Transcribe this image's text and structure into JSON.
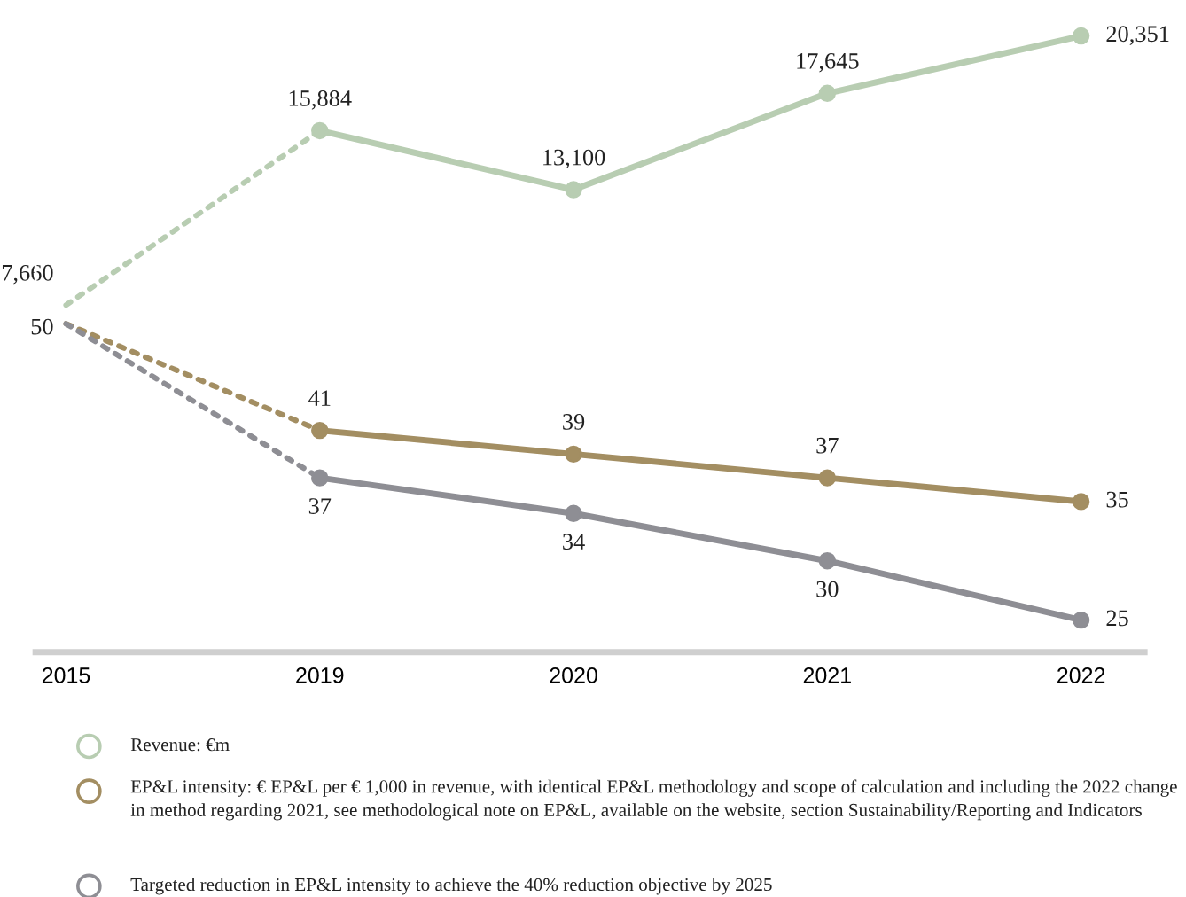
{
  "chart_data": {
    "type": "line",
    "categories": [
      "2015",
      "2019",
      "2020",
      "2021",
      "2022"
    ],
    "series": [
      {
        "color": "#b8cdb2",
        "axis": "y2",
        "line_style": "dotted",
        "marker": "none",
        "values": [
          7660,
          15884,
          null,
          null,
          null
        ],
        "value_labels": [
          "7,660",
          null,
          null,
          null,
          null
        ]
      },
      {
        "name": "Revenue: €m",
        "color": "#b8cdb2",
        "axis": "y2",
        "values": [
          null,
          15884,
          13100,
          17645,
          20351
        ],
        "value_labels": [
          null,
          "15,884",
          "13,100",
          "17,645",
          "20,351"
        ]
      },
      {
        "color": "#a38e62",
        "line_style": "dotted",
        "marker": "none",
        "values": [
          50,
          41,
          null,
          null,
          null
        ],
        "value_labels": [
          "50",
          null,
          null,
          null,
          null
        ]
      },
      {
        "name": "EP&L intensity: € EP&L per € 1,000 in revenue, with identical EP&L methodology and scope of calculation and including the 2022 change in method regarding 2021, see methodological note on EP&L, available on the website, section Sustainability/Reporting and Indicators",
        "color": "#a38e62",
        "values": [
          null,
          41,
          39,
          37,
          35
        ],
        "value_labels": [
          null,
          "41",
          "39",
          "37",
          "35"
        ]
      },
      {
        "color": "#8e8e94",
        "line_style": "dotted",
        "marker": "none",
        "values": [
          50,
          37,
          null,
          null,
          null
        ]
      },
      {
        "name": "Targeted reduction in EP&L intensity to achieve the 40% reduction objective by 2025",
        "color": "#8e8e94",
        "values": [
          null,
          37,
          34,
          30,
          25
        ],
        "value_labels": [
          null,
          "37",
          "34",
          "30",
          "25"
        ]
      }
    ],
    "ylim": [
      22.3,
      75.8
    ],
    "y2lim": [
      -8700,
      21200
    ],
    "tick_labels": "x",
    "marker": "circle",
    "line_style": "solid",
    "legend": "bottom"
  }
}
